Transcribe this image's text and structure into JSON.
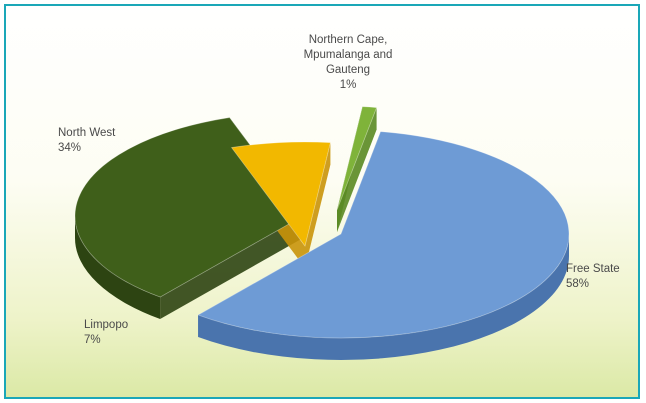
{
  "chart_data": {
    "type": "pie",
    "title": "",
    "categories": [
      "Free State",
      "North West",
      "Limpopo",
      "Northern Cape, Mpumalanga and Gauteng"
    ],
    "values": [
      58,
      34,
      7,
      1
    ],
    "value_labels": [
      "58%",
      "34%",
      "7%",
      "1%"
    ],
    "label_lines": [
      [
        "Free State",
        "58%"
      ],
      [
        "North West",
        "34%"
      ],
      [
        "Limpopo",
        "7%"
      ],
      [
        "Northern Cape,",
        "Mpumalanga and",
        "Gauteng",
        "1%"
      ]
    ],
    "colors": [
      "#6e9bd5",
      "#3f5f1a",
      "#f2b800",
      "#7fb33a"
    ],
    "side_colors": [
      "#4a74ad",
      "#2d4412",
      "#c9930a",
      "#5a8a22"
    ],
    "style": "3D exploded pie",
    "legend": "none"
  }
}
